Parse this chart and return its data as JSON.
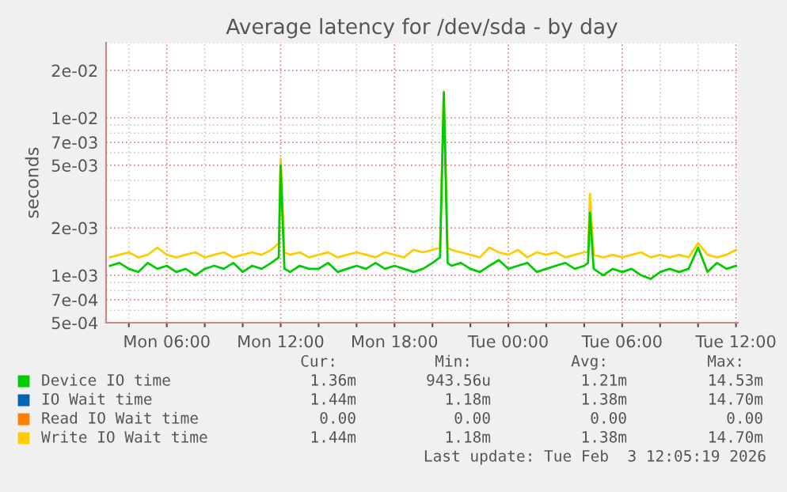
{
  "chart_data": {
    "type": "line",
    "title": "Average latency for /dev/sda - by day",
    "ylabel": "seconds",
    "x": [
      "2026-02-02T03:00",
      "2026-02-02T03:30",
      "2026-02-02T04:00",
      "2026-02-02T04:30",
      "2026-02-02T05:00",
      "2026-02-02T05:30",
      "2026-02-02T06:00",
      "2026-02-02T06:30",
      "2026-02-02T07:00",
      "2026-02-02T07:30",
      "2026-02-02T08:00",
      "2026-02-02T08:30",
      "2026-02-02T09:00",
      "2026-02-02T09:30",
      "2026-02-02T10:00",
      "2026-02-02T10:30",
      "2026-02-02T11:00",
      "2026-02-02T11:30",
      "2026-02-02T11:54",
      "2026-02-02T12:00",
      "2026-02-02T12:12",
      "2026-02-02T12:30",
      "2026-02-02T13:00",
      "2026-02-02T13:30",
      "2026-02-02T14:00",
      "2026-02-02T14:30",
      "2026-02-02T15:00",
      "2026-02-02T15:30",
      "2026-02-02T16:00",
      "2026-02-02T16:30",
      "2026-02-02T17:00",
      "2026-02-02T17:30",
      "2026-02-02T18:00",
      "2026-02-02T18:30",
      "2026-02-02T19:00",
      "2026-02-02T19:30",
      "2026-02-02T20:00",
      "2026-02-02T20:24",
      "2026-02-02T20:36",
      "2026-02-02T20:48",
      "2026-02-02T21:00",
      "2026-02-02T21:30",
      "2026-02-02T22:00",
      "2026-02-02T22:30",
      "2026-02-02T23:00",
      "2026-02-02T23:30",
      "2026-02-03T00:00",
      "2026-02-03T00:30",
      "2026-02-03T01:00",
      "2026-02-03T01:30",
      "2026-02-03T02:00",
      "2026-02-03T02:30",
      "2026-02-03T03:00",
      "2026-02-03T03:30",
      "2026-02-03T04:00",
      "2026-02-03T04:12",
      "2026-02-03T04:18",
      "2026-02-03T04:30",
      "2026-02-03T05:00",
      "2026-02-03T05:30",
      "2026-02-03T06:00",
      "2026-02-03T06:30",
      "2026-02-03T07:00",
      "2026-02-03T07:30",
      "2026-02-03T08:00",
      "2026-02-03T08:30",
      "2026-02-03T09:00",
      "2026-02-03T09:30",
      "2026-02-03T10:00",
      "2026-02-03T10:30",
      "2026-02-03T11:00",
      "2026-02-03T11:30",
      "2026-02-03T12:00"
    ],
    "series": [
      {
        "name": "Device IO time",
        "color": "#00cc00",
        "values": [
          0.00115,
          0.0012,
          0.0011,
          0.00105,
          0.0012,
          0.0011,
          0.00115,
          0.00105,
          0.0011,
          0.001,
          0.0011,
          0.00115,
          0.0011,
          0.0012,
          0.00105,
          0.00115,
          0.0011,
          0.0012,
          0.0013,
          0.005,
          0.0011,
          0.00105,
          0.00115,
          0.0011,
          0.0011,
          0.0012,
          0.00105,
          0.0011,
          0.00115,
          0.0011,
          0.0012,
          0.0011,
          0.00115,
          0.0011,
          0.00105,
          0.0011,
          0.0012,
          0.0013,
          0.0145,
          0.0012,
          0.00115,
          0.0012,
          0.0011,
          0.00105,
          0.00115,
          0.00125,
          0.0011,
          0.00115,
          0.0012,
          0.00105,
          0.0011,
          0.00115,
          0.0012,
          0.0011,
          0.00115,
          0.0012,
          0.0025,
          0.0011,
          0.001,
          0.0011,
          0.00105,
          0.0011,
          0.001,
          0.00095,
          0.00105,
          0.0011,
          0.00105,
          0.0011,
          0.0015,
          0.00105,
          0.0012,
          0.0011,
          0.00115
        ]
      },
      {
        "name": "IO Wait time",
        "color": "#0066b3",
        "values": [
          null,
          null,
          null,
          null,
          null,
          null,
          null,
          null,
          null,
          null,
          null,
          null,
          null,
          null,
          null,
          null,
          null,
          null,
          null,
          null,
          null,
          null,
          null,
          null,
          null,
          null,
          null,
          null,
          null,
          null,
          null,
          null,
          null,
          null,
          null,
          null,
          null,
          null,
          null,
          null,
          null,
          null,
          null,
          null,
          null,
          null,
          null,
          null,
          null,
          null,
          null,
          null,
          null,
          null,
          null,
          null,
          null,
          null,
          null,
          null,
          null,
          null,
          null,
          null,
          null,
          null,
          null,
          null,
          null,
          null,
          null,
          null,
          null
        ]
      },
      {
        "name": "Read IO Wait time",
        "color": "#ff8000",
        "values": [
          null,
          null,
          null,
          null,
          null,
          null,
          null,
          null,
          null,
          null,
          null,
          null,
          null,
          null,
          null,
          null,
          null,
          null,
          null,
          null,
          null,
          null,
          null,
          null,
          null,
          null,
          null,
          null,
          null,
          null,
          null,
          null,
          null,
          null,
          null,
          null,
          null,
          null,
          null,
          null,
          null,
          null,
          null,
          null,
          null,
          null,
          null,
          null,
          null,
          null,
          null,
          null,
          null,
          null,
          null,
          null,
          null,
          null,
          null,
          null,
          null,
          null,
          null,
          null,
          null,
          null,
          null,
          null,
          null,
          null,
          null,
          null,
          null
        ]
      },
      {
        "name": "Write IO Wait time",
        "color": "#ffcc00",
        "values": [
          0.0013,
          0.00135,
          0.0014,
          0.0013,
          0.00135,
          0.0015,
          0.00135,
          0.0013,
          0.00135,
          0.0014,
          0.0013,
          0.00135,
          0.0014,
          0.0013,
          0.00135,
          0.0014,
          0.00135,
          0.00145,
          0.0016,
          0.0055,
          0.0014,
          0.00135,
          0.0014,
          0.0013,
          0.00135,
          0.0014,
          0.0013,
          0.00135,
          0.0014,
          0.00135,
          0.0013,
          0.0014,
          0.00135,
          0.0013,
          0.00145,
          0.0014,
          0.00145,
          0.0015,
          0.0147,
          0.0015,
          0.00145,
          0.0014,
          0.00135,
          0.0013,
          0.0015,
          0.0014,
          0.00135,
          0.00145,
          0.0013,
          0.0014,
          0.00135,
          0.0014,
          0.0013,
          0.00135,
          0.0014,
          0.0014,
          0.0033,
          0.00135,
          0.0013,
          0.00135,
          0.0013,
          0.00135,
          0.0014,
          0.0013,
          0.00135,
          0.0013,
          0.00135,
          0.0013,
          0.0016,
          0.00135,
          0.0013,
          0.00135,
          0.00145
        ]
      }
    ],
    "log": "y",
    "xlim": [
      "2026-02-02T02:48",
      "2026-02-03T12:06"
    ],
    "ylim": [
      0.0005,
      0.03
    ],
    "xticks": [
      {
        "value": "2026-02-02T04:00",
        "label": null
      },
      {
        "value": "2026-02-02T06:00",
        "label": "Mon 06:00"
      },
      {
        "value": "2026-02-02T08:00",
        "label": null
      },
      {
        "value": "2026-02-02T10:00",
        "label": null
      },
      {
        "value": "2026-02-02T12:00",
        "label": "Mon 12:00"
      },
      {
        "value": "2026-02-02T14:00",
        "label": null
      },
      {
        "value": "2026-02-02T16:00",
        "label": null
      },
      {
        "value": "2026-02-02T18:00",
        "label": "Mon 18:00"
      },
      {
        "value": "2026-02-02T20:00",
        "label": null
      },
      {
        "value": "2026-02-02T22:00",
        "label": null
      },
      {
        "value": "2026-02-03T00:00",
        "label": "Tue 00:00"
      },
      {
        "value": "2026-02-03T02:00",
        "label": null
      },
      {
        "value": "2026-02-03T04:00",
        "label": null
      },
      {
        "value": "2026-02-03T06:00",
        "label": "Tue 06:00"
      },
      {
        "value": "2026-02-03T08:00",
        "label": null
      },
      {
        "value": "2026-02-03T10:00",
        "label": null
      },
      {
        "value": "2026-02-03T12:00",
        "label": "Tue 12:00"
      }
    ],
    "yticks": [
      {
        "value": 0.0005,
        "label": "5e-04"
      },
      {
        "value": 0.0006,
        "label": null
      },
      {
        "value": 0.0007,
        "label": "7e-04"
      },
      {
        "value": 0.0008,
        "label": null
      },
      {
        "value": 0.0009,
        "label": null
      },
      {
        "value": 0.001,
        "label": "1e-03"
      },
      {
        "value": 0.002,
        "label": "2e-03"
      },
      {
        "value": 0.003,
        "label": null
      },
      {
        "value": 0.004,
        "label": null
      },
      {
        "value": 0.005,
        "label": "5e-03"
      },
      {
        "value": 0.006,
        "label": null
      },
      {
        "value": 0.007,
        "label": "7e-03"
      },
      {
        "value": 0.008,
        "label": null
      },
      {
        "value": 0.009,
        "label": null
      },
      {
        "value": 0.01,
        "label": "1e-02"
      },
      {
        "value": 0.02,
        "label": "2e-02"
      },
      {
        "value": 0.03,
        "label": null
      }
    ],
    "grid": true,
    "legend": "bottom",
    "marker": "none",
    "line_style": "solid",
    "annotations": [
      "Cur:",
      "Min:",
      "Avg:",
      "Max:",
      "1.36m",
      "943.56u",
      "1.21m",
      "14.53m",
      "1.44m",
      "1.18m",
      "1.38m",
      "14.70m",
      "0.00",
      "0.00",
      "0.00",
      "0.00",
      "1.44m",
      "1.18m",
      "1.38m",
      "14.70m",
      "Last update: Tue Feb  3 12:05:19 2026"
    ]
  }
}
